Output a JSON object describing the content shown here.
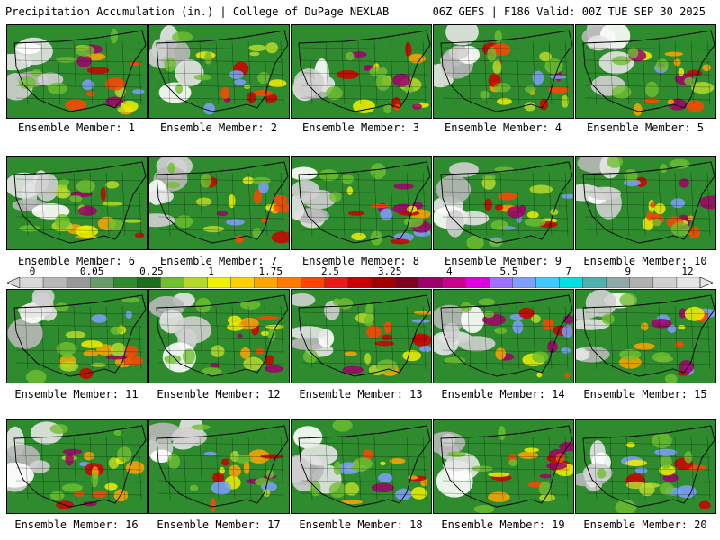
{
  "header": {
    "left": "Precipitation Accumulation (in.) | College of DuPage NEXLAB",
    "right": "06Z GEFS | F186 Valid: 00Z TUE SEP 30 2025"
  },
  "members": [
    "Ensemble Member: 1",
    "Ensemble Member: 2",
    "Ensemble Member: 3",
    "Ensemble Member: 4",
    "Ensemble Member: 5",
    "Ensemble Member: 6",
    "Ensemble Member: 7",
    "Ensemble Member: 8",
    "Ensemble Member: 9",
    "Ensemble Member: 10",
    "Ensemble Member: 11",
    "Ensemble Member: 12",
    "Ensemble Member: 13",
    "Ensemble Member: 14",
    "Ensemble Member: 15",
    "Ensemble Member: 16",
    "Ensemble Member: 17",
    "Ensemble Member: 18",
    "Ensemble Member: 19",
    "Ensemble Member: 20"
  ],
  "colorbar": {
    "labels": [
      "0",
      "0.05",
      "0.25",
      "1",
      "1.75",
      "2.5",
      "3.25",
      "4",
      "5.5",
      "7",
      "9",
      "12"
    ],
    "colors": [
      "#d8d8d8",
      "#b8b8b8",
      "#989898",
      "#6a9c6a",
      "#2e8b2e",
      "#1f6e1f",
      "#6fbf2f",
      "#b5d92a",
      "#f0f000",
      "#ffcf00",
      "#ffa500",
      "#ff7a00",
      "#ff4500",
      "#e81a1a",
      "#cc0000",
      "#a00000",
      "#800020",
      "#a0006a",
      "#c8008c",
      "#e000e0",
      "#a070ff",
      "#7f9fff",
      "#40c8ff",
      "#00e0e0",
      "#4fb0b0",
      "#8fa8a8",
      "#b0b0b0",
      "#d0d0d0",
      "#e6e6e6"
    ]
  }
}
